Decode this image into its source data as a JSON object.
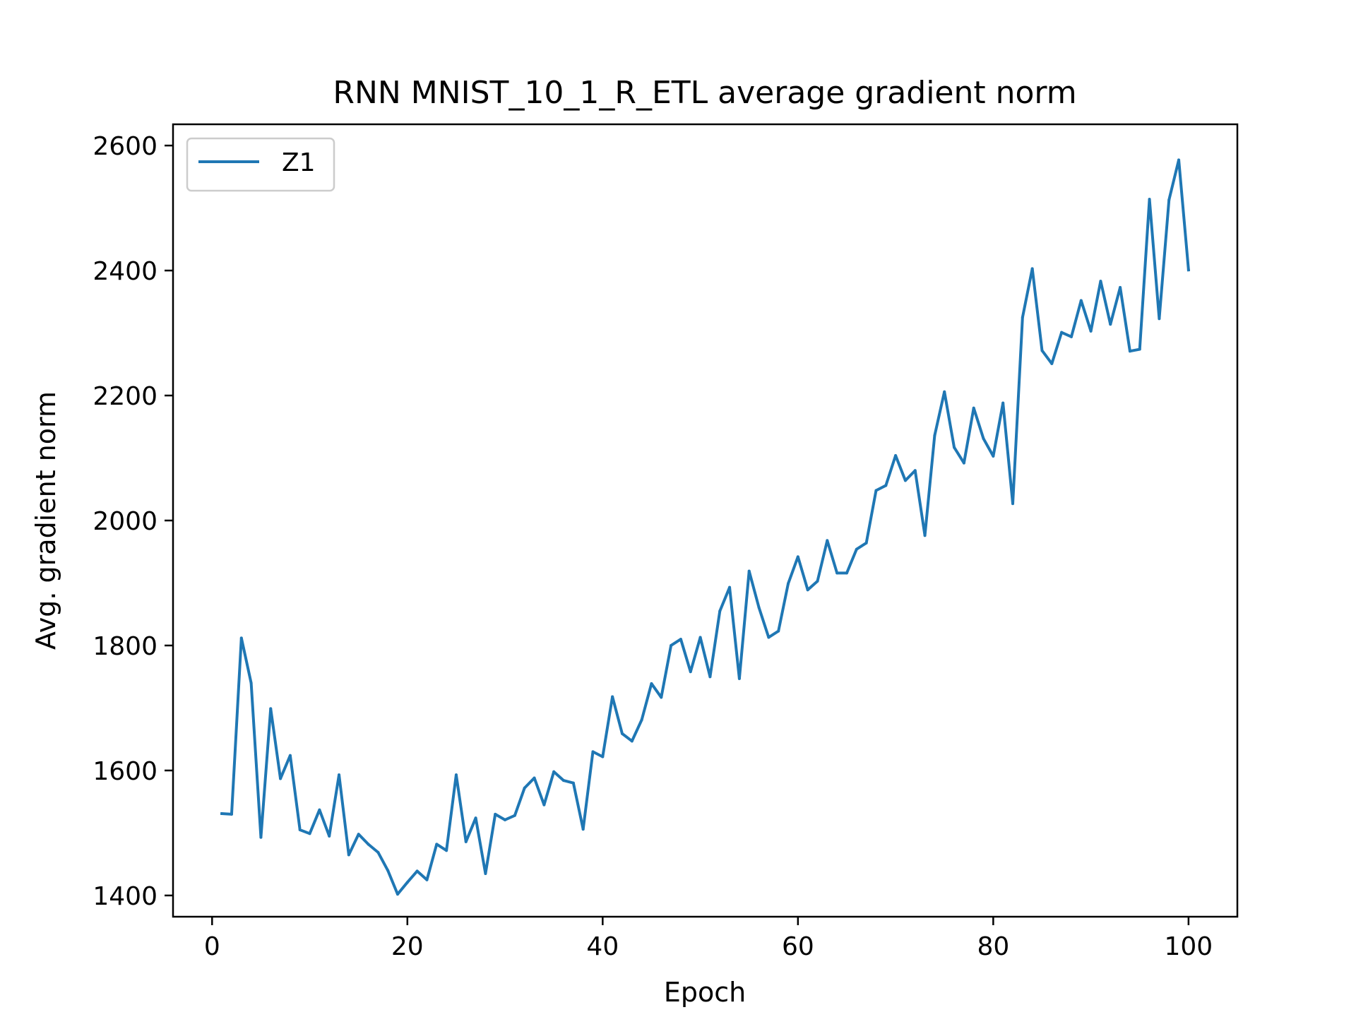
{
  "chart_data": {
    "type": "line",
    "title": "RNN MNIST_10_1_R_ETL average gradient norm",
    "xlabel": "Epoch",
    "ylabel": "Avg. gradient norm",
    "xlim": [
      -4,
      105
    ],
    "ylim": [
      1366,
      2634
    ],
    "xticks": [
      0,
      20,
      40,
      60,
      80,
      100
    ],
    "yticks": [
      1400,
      1600,
      1800,
      2000,
      2200,
      2400,
      2600
    ],
    "grid": false,
    "legend_position": "top-left",
    "series": [
      {
        "name": "Z1",
        "color": "#1f77b4",
        "x": [
          1,
          2,
          3,
          4,
          5,
          6,
          7,
          8,
          9,
          10,
          11,
          12,
          13,
          14,
          15,
          16,
          17,
          18,
          19,
          20,
          21,
          22,
          23,
          24,
          25,
          26,
          27,
          28,
          29,
          30,
          31,
          32,
          33,
          34,
          35,
          36,
          37,
          38,
          39,
          40,
          41,
          42,
          43,
          44,
          45,
          46,
          47,
          48,
          49,
          50,
          51,
          52,
          53,
          54,
          55,
          56,
          57,
          58,
          59,
          60,
          61,
          62,
          63,
          64,
          65,
          66,
          67,
          68,
          69,
          70,
          71,
          72,
          73,
          74,
          75,
          76,
          77,
          78,
          79,
          80,
          81,
          82,
          83,
          84,
          85,
          86,
          87,
          88,
          89,
          90,
          91,
          92,
          93,
          94,
          95,
          96,
          97,
          98,
          99,
          100
        ],
        "values": [
          1531,
          1530,
          1812,
          1740,
          1493,
          1699,
          1587,
          1624,
          1505,
          1499,
          1537,
          1495,
          1593,
          1465,
          1498,
          1482,
          1469,
          1440,
          1402,
          1421,
          1439,
          1425,
          1482,
          1472,
          1593,
          1486,
          1524,
          1435,
          1530,
          1521,
          1528,
          1572,
          1588,
          1545,
          1598,
          1584,
          1580,
          1506,
          1630,
          1622,
          1718,
          1659,
          1647,
          1681,
          1739,
          1717,
          1800,
          1810,
          1758,
          1813,
          1750,
          1855,
          1893,
          1747,
          1919,
          1861,
          1813,
          1823,
          1899,
          1942,
          1889,
          1903,
          1968,
          1916,
          1916,
          1954,
          1964,
          2048,
          2056,
          2104,
          2064,
          2080,
          1976,
          2136,
          2206,
          2117,
          2092,
          2180,
          2131,
          2103,
          2188,
          2027,
          2325,
          2403,
          2272,
          2251,
          2301,
          2294,
          2352,
          2303,
          2383,
          2314,
          2373,
          2271,
          2274,
          2514,
          2323,
          2513,
          2577,
          2401
        ]
      }
    ]
  }
}
